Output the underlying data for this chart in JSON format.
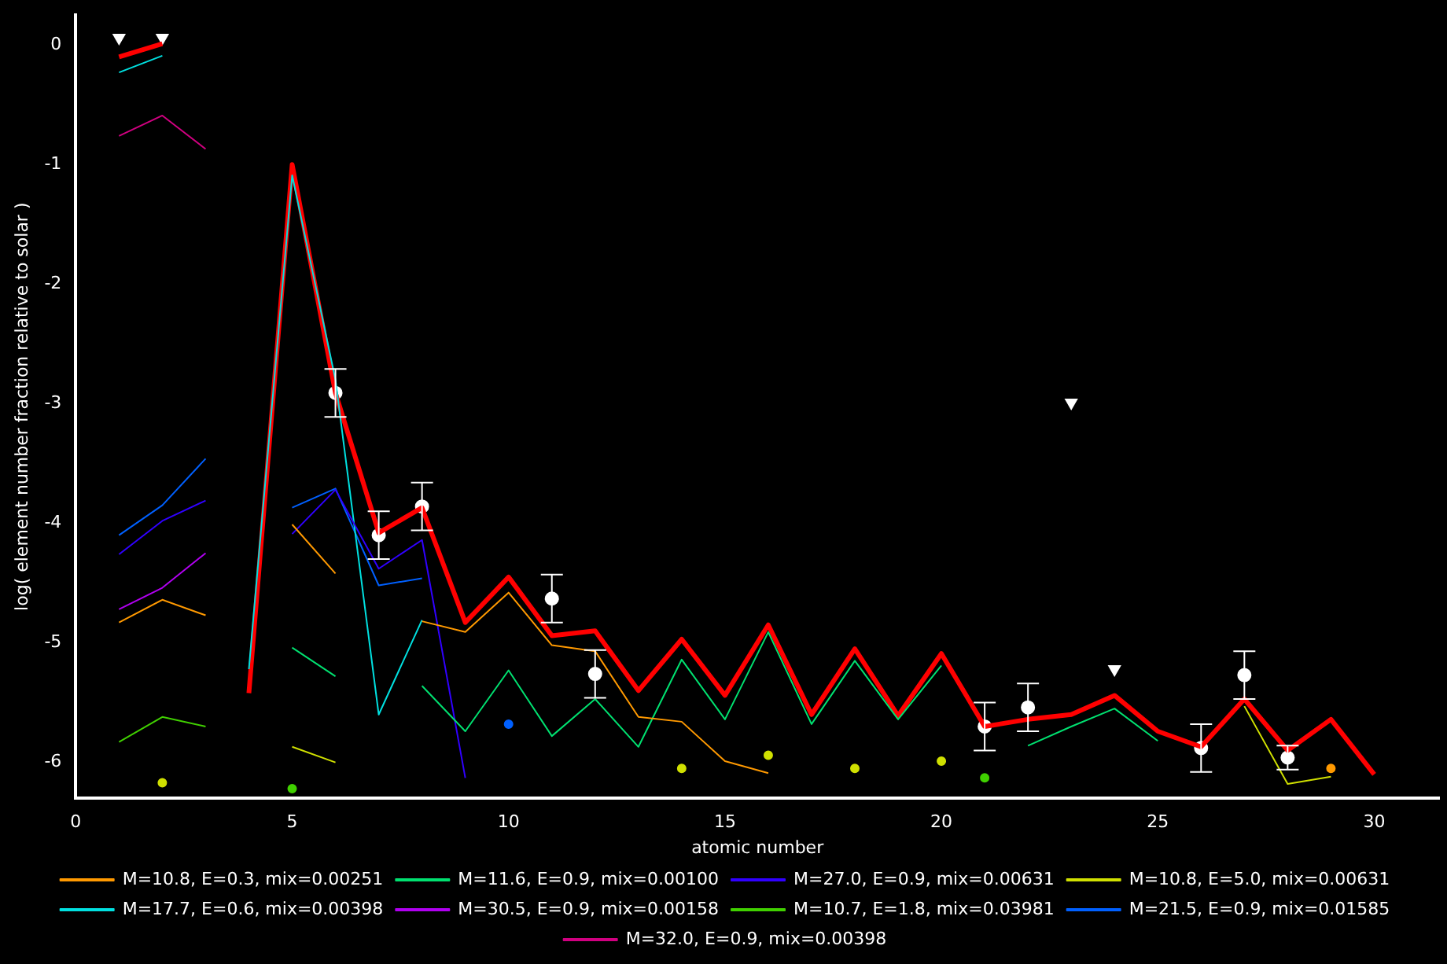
{
  "chart_data": {
    "type": "line",
    "xlabel": "atomic number",
    "ylabel": "log( element number fraction relative to solar )",
    "x": [
      1,
      2,
      3,
      4,
      5,
      6,
      7,
      8,
      9,
      10,
      11,
      12,
      13,
      14,
      15,
      16,
      17,
      18,
      19,
      20,
      21,
      22,
      23,
      24,
      25,
      26,
      27,
      28,
      29,
      30
    ],
    "xlim": [
      0,
      31.5
    ],
    "xticks": [
      0,
      5,
      10,
      15,
      20,
      25,
      30
    ],
    "ylim": [
      -6.3,
      0.25
    ],
    "yticks": [
      -6,
      -5,
      -4,
      -3,
      -2,
      -1,
      0
    ],
    "legend": "bottom",
    "series": [
      {
        "name": "M=10.8, E=0.3, mix=0.00251",
        "color": "#ff9900",
        "values": [
          -4.83,
          -4.64,
          -4.77,
          null,
          -4.01,
          -4.42,
          null,
          -4.82,
          -4.91,
          -4.58,
          -5.02,
          -5.07,
          -5.62,
          -5.66,
          -5.99,
          -6.09,
          null,
          null,
          null,
          null,
          null,
          null,
          null,
          null,
          null,
          null,
          null,
          null,
          -6.05,
          null
        ]
      },
      {
        "name": "M=11.6, E=0.9, mix=0.00100",
        "color": "#00e070",
        "values": [
          null,
          null,
          null,
          null,
          -5.04,
          -5.28,
          null,
          -5.36,
          -5.74,
          -5.23,
          -5.78,
          -5.47,
          -5.87,
          -5.14,
          -5.64,
          -4.91,
          -5.68,
          -5.15,
          -5.64,
          -5.19,
          null,
          -5.86,
          -5.7,
          -5.55,
          -5.82,
          null,
          null,
          null,
          null,
          null
        ]
      },
      {
        "name": "M=27.0, E=0.9, mix=0.00631",
        "color": "#3000ff",
        "values": [
          -4.26,
          -3.98,
          -3.81,
          null,
          -4.09,
          -3.72,
          -4.38,
          -4.14,
          -6.13,
          null,
          null,
          null,
          null,
          null,
          null,
          null,
          null,
          null,
          null,
          null,
          null,
          null,
          null,
          null,
          null,
          null,
          null,
          null,
          null,
          null
        ]
      },
      {
        "name": "M=10.8, E=5.0, mix=0.00631",
        "color": "#d0e000",
        "values": [
          null,
          -6.17,
          null,
          null,
          -5.87,
          -6.0,
          null,
          null,
          null,
          null,
          null,
          null,
          null,
          -6.05,
          null,
          -5.94,
          null,
          -6.05,
          null,
          -5.99,
          null,
          null,
          null,
          null,
          null,
          null,
          -5.53,
          -6.18,
          -6.12,
          null
        ]
      },
      {
        "name": "M=17.7, E=0.6, mix=0.00398",
        "color": "#00e0e0",
        "values": [
          -0.23,
          -0.09,
          null,
          -5.22,
          -1.09,
          -2.8,
          -5.6,
          -4.81,
          null,
          null,
          null,
          null,
          null,
          null,
          null,
          null,
          null,
          null,
          null,
          null,
          null,
          null,
          null,
          null,
          null,
          null,
          null,
          null,
          null,
          null
        ]
      },
      {
        "name": "M=30.5, E=0.9, mix=0.00158",
        "color": "#b000f0",
        "values": [
          -4.72,
          -4.54,
          -4.25,
          null,
          null,
          null,
          null,
          null,
          null,
          null,
          null,
          null,
          null,
          null,
          null,
          null,
          null,
          null,
          null,
          null,
          null,
          null,
          null,
          null,
          null,
          null,
          null,
          null,
          null,
          null
        ]
      },
      {
        "name": "M=10.7, E=1.8, mix=0.03981",
        "color": "#40d000",
        "values": [
          -5.83,
          -5.62,
          -5.7,
          null,
          -6.22,
          null,
          null,
          null,
          null,
          null,
          null,
          null,
          null,
          null,
          null,
          null,
          null,
          null,
          null,
          null,
          -6.13,
          null,
          null,
          null,
          null,
          null,
          null,
          null,
          null,
          null
        ]
      },
      {
        "name": "M=21.5, E=0.9, mix=0.01585",
        "color": "#0060ff",
        "values": [
          -4.1,
          -3.85,
          -3.46,
          null,
          -3.87,
          -3.71,
          -4.52,
          -4.46,
          null,
          -5.68,
          null,
          null,
          null,
          null,
          null,
          null,
          null,
          null,
          null,
          null,
          null,
          null,
          null,
          null,
          null,
          null,
          null,
          null,
          null,
          null
        ]
      },
      {
        "name": "M=32.0, E=0.9, mix=0.00398",
        "color": "#d00080",
        "values": [
          -0.76,
          -0.59,
          -0.87,
          null,
          null,
          null,
          null,
          null,
          null,
          null,
          null,
          null,
          null,
          null,
          null,
          null,
          null,
          null,
          null,
          null,
          null,
          null,
          null,
          null,
          null,
          null,
          null,
          null,
          null,
          null
        ]
      },
      {
        "color": "#ff0000",
        "values": [
          -0.1,
          0.01,
          null,
          -5.42,
          -1.0,
          -2.91,
          -4.08,
          -3.87,
          -4.83,
          -4.45,
          -4.94,
          -4.9,
          -5.4,
          -4.97,
          -5.44,
          -4.85,
          -5.6,
          -5.05,
          -5.61,
          -5.09,
          -5.7,
          -5.64,
          -5.6,
          -5.44,
          -5.74,
          -5.87,
          -5.47,
          -5.9,
          -5.64,
          -6.1
        ]
      },
      {
        "type": "scatter",
        "marker": "circle",
        "color": "#ffffff",
        "x": [
          6,
          7,
          8,
          11,
          12,
          21,
          22,
          26,
          27,
          28
        ],
        "values": [
          -2.91,
          -4.1,
          -3.86,
          -4.63,
          -5.26,
          -5.7,
          -5.54,
          -5.88,
          -5.27,
          -5.96
        ],
        "errors": [
          0.2,
          0.2,
          0.2,
          0.2,
          0.2,
          0.2,
          0.2,
          0.2,
          0.2,
          0.1
        ]
      },
      {
        "type": "scatter",
        "marker": "triangle",
        "color": "#ffffff",
        "x": [
          1,
          2,
          23,
          24
        ],
        "values": [
          0.06,
          0.06,
          -2.99,
          -5.22
        ]
      }
    ]
  }
}
